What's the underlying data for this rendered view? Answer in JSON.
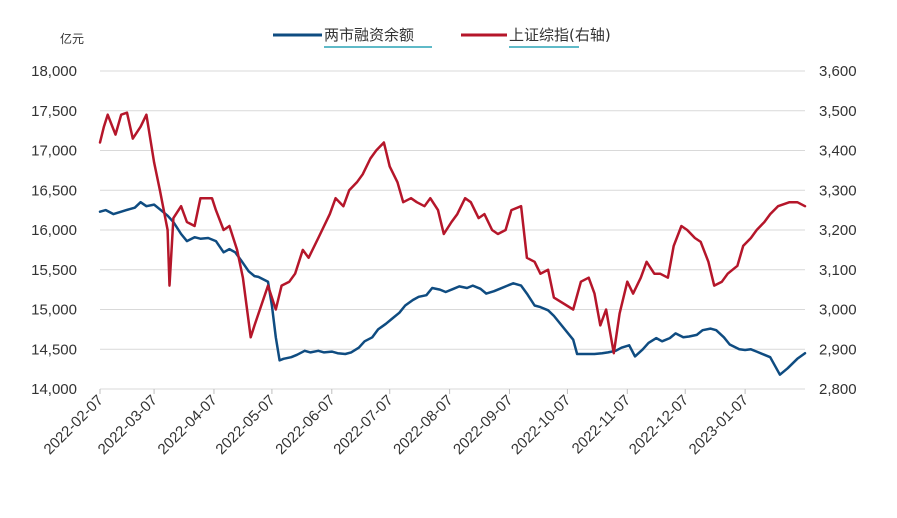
{
  "chart_data": {
    "type": "line",
    "unit_left": "亿元",
    "legend": [
      "两市融资余额",
      "上证综指(右轴)"
    ],
    "colors": {
      "margin": "#0f4c81",
      "index": "#b5162a"
    },
    "grid": "horizontal",
    "legend_position": "top-center",
    "left_axis": {
      "min": 14000,
      "max": 18000,
      "ticks": [
        "14,000",
        "14,500",
        "15,000",
        "15,500",
        "16,000",
        "16,500",
        "17,000",
        "17,500",
        "18,000"
      ]
    },
    "right_axis": {
      "min": 2800,
      "max": 3600,
      "ticks": [
        "2,800",
        "2,900",
        "3,000",
        "3,100",
        "3,200",
        "3,300",
        "3,400",
        "3,500",
        "3,600"
      ]
    },
    "x_ticks": [
      "2022-02-07",
      "2022-03-07",
      "2022-04-07",
      "2022-05-07",
      "2022-06-07",
      "2022-07-07",
      "2022-08-07",
      "2022-09-07",
      "2022-10-07",
      "2022-11-07",
      "2022-12-07",
      "2023-01-07"
    ],
    "x_range": [
      "2022-02-07",
      "2023-02-07"
    ],
    "series": [
      {
        "name": "两市融资余额",
        "axis": "left",
        "points": [
          [
            "2022-02-07",
            16230
          ],
          [
            "2022-02-10",
            16250
          ],
          [
            "2022-02-14",
            16200
          ],
          [
            "2022-02-18",
            16230
          ],
          [
            "2022-02-22",
            16260
          ],
          [
            "2022-02-25",
            16280
          ],
          [
            "2022-02-28",
            16350
          ],
          [
            "2022-03-03",
            16300
          ],
          [
            "2022-03-07",
            16320
          ],
          [
            "2022-03-10",
            16260
          ],
          [
            "2022-03-14",
            16180
          ],
          [
            "2022-03-17",
            16100
          ],
          [
            "2022-03-21",
            15950
          ],
          [
            "2022-03-24",
            15860
          ],
          [
            "2022-03-28",
            15910
          ],
          [
            "2022-03-31",
            15890
          ],
          [
            "2022-04-04",
            15900
          ],
          [
            "2022-04-08",
            15860
          ],
          [
            "2022-04-12",
            15720
          ],
          [
            "2022-04-15",
            15760
          ],
          [
            "2022-04-18",
            15720
          ],
          [
            "2022-04-21",
            15620
          ],
          [
            "2022-04-25",
            15480
          ],
          [
            "2022-04-28",
            15420
          ],
          [
            "2022-04-30",
            15410
          ],
          [
            "2022-05-05",
            15350
          ],
          [
            "2022-05-07",
            15050
          ],
          [
            "2022-05-09",
            14650
          ],
          [
            "2022-05-11",
            14360
          ],
          [
            "2022-05-13",
            14380
          ],
          [
            "2022-05-17",
            14400
          ],
          [
            "2022-05-20",
            14430
          ],
          [
            "2022-05-24",
            14480
          ],
          [
            "2022-05-27",
            14460
          ],
          [
            "2022-05-31",
            14480
          ],
          [
            "2022-06-03",
            14460
          ],
          [
            "2022-06-07",
            14470
          ],
          [
            "2022-06-10",
            14450
          ],
          [
            "2022-06-14",
            14440
          ],
          [
            "2022-06-17",
            14460
          ],
          [
            "2022-06-21",
            14520
          ],
          [
            "2022-06-24",
            14600
          ],
          [
            "2022-06-28",
            14650
          ],
          [
            "2022-07-01",
            14750
          ],
          [
            "2022-07-05",
            14820
          ],
          [
            "2022-07-08",
            14880
          ],
          [
            "2022-07-12",
            14960
          ],
          [
            "2022-07-15",
            15050
          ],
          [
            "2022-07-19",
            15120
          ],
          [
            "2022-07-22",
            15160
          ],
          [
            "2022-07-26",
            15180
          ],
          [
            "2022-07-29",
            15270
          ],
          [
            "2022-08-02",
            15250
          ],
          [
            "2022-08-05",
            15220
          ],
          [
            "2022-08-09",
            15260
          ],
          [
            "2022-08-12",
            15290
          ],
          [
            "2022-08-16",
            15270
          ],
          [
            "2022-08-19",
            15300
          ],
          [
            "2022-08-23",
            15260
          ],
          [
            "2022-08-26",
            15200
          ],
          [
            "2022-08-30",
            15230
          ],
          [
            "2022-09-02",
            15260
          ],
          [
            "2022-09-06",
            15300
          ],
          [
            "2022-09-09",
            15330
          ],
          [
            "2022-09-13",
            15300
          ],
          [
            "2022-09-16",
            15200
          ],
          [
            "2022-09-20",
            15050
          ],
          [
            "2022-09-23",
            15030
          ],
          [
            "2022-09-27",
            14990
          ],
          [
            "2022-09-30",
            14920
          ],
          [
            "2022-10-10",
            14620
          ],
          [
            "2022-10-12",
            14440
          ],
          [
            "2022-10-17",
            14440
          ],
          [
            "2022-10-21",
            14440
          ],
          [
            "2022-10-25",
            14450
          ],
          [
            "2022-10-28",
            14460
          ],
          [
            "2022-11-01",
            14480
          ],
          [
            "2022-11-04",
            14520
          ],
          [
            "2022-11-08",
            14550
          ],
          [
            "2022-11-11",
            14410
          ],
          [
            "2022-11-15",
            14500
          ],
          [
            "2022-11-18",
            14580
          ],
          [
            "2022-11-22",
            14640
          ],
          [
            "2022-11-25",
            14600
          ],
          [
            "2022-11-29",
            14640
          ],
          [
            "2022-12-02",
            14700
          ],
          [
            "2022-12-06",
            14650
          ],
          [
            "2022-12-09",
            14660
          ],
          [
            "2022-12-13",
            14680
          ],
          [
            "2022-12-16",
            14740
          ],
          [
            "2022-12-20",
            14760
          ],
          [
            "2022-12-23",
            14740
          ],
          [
            "2022-12-27",
            14650
          ],
          [
            "2022-12-30",
            14560
          ],
          [
            "2023-01-04",
            14500
          ],
          [
            "2023-01-07",
            14490
          ],
          [
            "2023-01-10",
            14500
          ],
          [
            "2023-01-13",
            14470
          ],
          [
            "2023-01-17",
            14430
          ],
          [
            "2023-01-20",
            14400
          ],
          [
            "2023-01-25",
            14180
          ],
          [
            "2023-01-29",
            14260
          ],
          [
            "2023-02-03",
            14380
          ],
          [
            "2023-02-07",
            14450
          ]
        ]
      },
      {
        "name": "上证综指(右轴)",
        "axis": "right",
        "points": [
          [
            "2022-02-07",
            3420
          ],
          [
            "2022-02-09",
            3460
          ],
          [
            "2022-02-11",
            3490
          ],
          [
            "2022-02-15",
            3440
          ],
          [
            "2022-02-18",
            3490
          ],
          [
            "2022-02-21",
            3495
          ],
          [
            "2022-02-24",
            3430
          ],
          [
            "2022-02-28",
            3460
          ],
          [
            "2022-03-03",
            3490
          ],
          [
            "2022-03-07",
            3370
          ],
          [
            "2022-03-10",
            3300
          ],
          [
            "2022-03-14",
            3200
          ],
          [
            "2022-03-15",
            3060
          ],
          [
            "2022-03-17",
            3230
          ],
          [
            "2022-03-21",
            3260
          ],
          [
            "2022-03-24",
            3220
          ],
          [
            "2022-03-28",
            3210
          ],
          [
            "2022-03-31",
            3280
          ],
          [
            "2022-04-06",
            3280
          ],
          [
            "2022-04-08",
            3250
          ],
          [
            "2022-04-12",
            3200
          ],
          [
            "2022-04-15",
            3210
          ],
          [
            "2022-04-19",
            3150
          ],
          [
            "2022-04-22",
            3080
          ],
          [
            "2022-04-26",
            2930
          ],
          [
            "2022-04-28",
            2960
          ],
          [
            "2022-05-05",
            3060
          ],
          [
            "2022-05-09",
            3000
          ],
          [
            "2022-05-12",
            3060
          ],
          [
            "2022-05-16",
            3070
          ],
          [
            "2022-05-19",
            3090
          ],
          [
            "2022-05-23",
            3150
          ],
          [
            "2022-05-26",
            3130
          ],
          [
            "2022-05-31",
            3180
          ],
          [
            "2022-06-06",
            3240
          ],
          [
            "2022-06-09",
            3280
          ],
          [
            "2022-06-13",
            3260
          ],
          [
            "2022-06-16",
            3300
          ],
          [
            "2022-06-20",
            3320
          ],
          [
            "2022-06-23",
            3340
          ],
          [
            "2022-06-27",
            3380
          ],
          [
            "2022-06-30",
            3400
          ],
          [
            "2022-07-04",
            3420
          ],
          [
            "2022-07-07",
            3360
          ],
          [
            "2022-07-11",
            3320
          ],
          [
            "2022-07-14",
            3270
          ],
          [
            "2022-07-18",
            3280
          ],
          [
            "2022-07-21",
            3270
          ],
          [
            "2022-07-25",
            3260
          ],
          [
            "2022-07-28",
            3280
          ],
          [
            "2022-08-01",
            3250
          ],
          [
            "2022-08-04",
            3190
          ],
          [
            "2022-08-08",
            3220
          ],
          [
            "2022-08-11",
            3240
          ],
          [
            "2022-08-15",
            3280
          ],
          [
            "2022-08-18",
            3270
          ],
          [
            "2022-08-22",
            3230
          ],
          [
            "2022-08-25",
            3240
          ],
          [
            "2022-08-29",
            3200
          ],
          [
            "2022-09-01",
            3190
          ],
          [
            "2022-09-05",
            3200
          ],
          [
            "2022-09-08",
            3250
          ],
          [
            "2022-09-13",
            3260
          ],
          [
            "2022-09-16",
            3130
          ],
          [
            "2022-09-20",
            3120
          ],
          [
            "2022-09-23",
            3090
          ],
          [
            "2022-09-27",
            3100
          ],
          [
            "2022-09-30",
            3030
          ],
          [
            "2022-10-10",
            3000
          ],
          [
            "2022-10-14",
            3070
          ],
          [
            "2022-10-18",
            3080
          ],
          [
            "2022-10-21",
            3040
          ],
          [
            "2022-10-24",
            2960
          ],
          [
            "2022-10-27",
            3000
          ],
          [
            "2022-10-31",
            2890
          ],
          [
            "2022-11-03",
            2990
          ],
          [
            "2022-11-07",
            3070
          ],
          [
            "2022-11-10",
            3040
          ],
          [
            "2022-11-14",
            3080
          ],
          [
            "2022-11-17",
            3120
          ],
          [
            "2022-11-21",
            3090
          ],
          [
            "2022-11-24",
            3090
          ],
          [
            "2022-11-28",
            3080
          ],
          [
            "2022-12-01",
            3160
          ],
          [
            "2022-12-05",
            3210
          ],
          [
            "2022-12-08",
            3200
          ],
          [
            "2022-12-12",
            3180
          ],
          [
            "2022-12-15",
            3170
          ],
          [
            "2022-12-19",
            3120
          ],
          [
            "2022-12-22",
            3060
          ],
          [
            "2022-12-26",
            3070
          ],
          [
            "2022-12-29",
            3090
          ],
          [
            "2023-01-03",
            3110
          ],
          [
            "2023-01-06",
            3160
          ],
          [
            "2023-01-10",
            3180
          ],
          [
            "2023-01-13",
            3200
          ],
          [
            "2023-01-17",
            3220
          ],
          [
            "2023-01-20",
            3240
          ],
          [
            "2023-01-24",
            3260
          ],
          [
            "2023-01-30",
            3270
          ],
          [
            "2023-02-03",
            3270
          ],
          [
            "2023-02-07",
            3260
          ]
        ]
      }
    ]
  }
}
